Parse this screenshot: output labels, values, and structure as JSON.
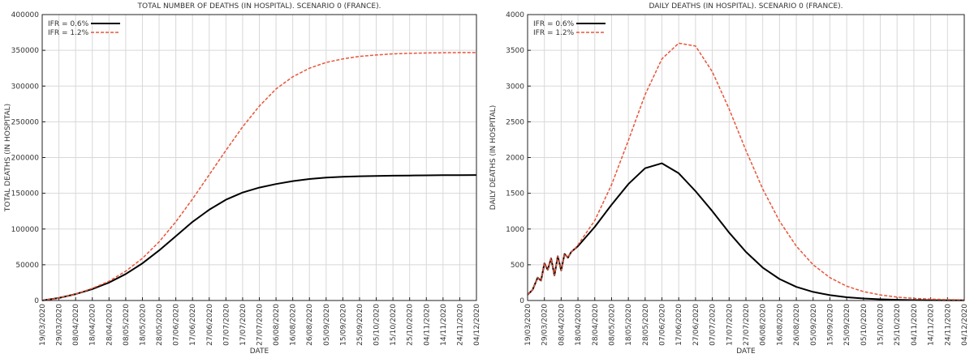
{
  "chart_data": [
    {
      "type": "line",
      "title": "TOTAL NUMBER OF DEATHS (IN HOSPITAL). SCENARIO 0 (FRANCE).",
      "xlabel": "DATE",
      "ylabel": "TOTAL DEATHS (IN HOSPITAL)",
      "x_tick_labels": [
        "19/03/2020",
        "29/03/2020",
        "08/04/2020",
        "18/04/2020",
        "28/04/2020",
        "08/05/2020",
        "18/05/2020",
        "28/05/2020",
        "07/06/2020",
        "17/06/2020",
        "27/06/2020",
        "07/07/2020",
        "17/07/2020",
        "27/07/2020",
        "06/08/2020",
        "16/08/2020",
        "26/08/2020",
        "05/09/2020",
        "15/09/2020",
        "25/09/2020",
        "05/10/2020",
        "15/10/2020",
        "25/10/2020",
        "04/11/2020",
        "14/11/2020",
        "24/11/2020",
        "04/12/2020"
      ],
      "ylim": [
        0,
        400000
      ],
      "y_ticks": [
        0,
        50000,
        100000,
        150000,
        200000,
        250000,
        300000,
        350000,
        400000
      ],
      "grid": true,
      "legend_position": "top-left",
      "series": [
        {
          "name": "IFR = 0.6%",
          "color": "#000000",
          "line_style": "solid",
          "x": [
            "19/03/2020",
            "29/03/2020",
            "08/04/2020",
            "18/04/2020",
            "28/04/2020",
            "08/05/2020",
            "18/05/2020",
            "28/05/2020",
            "07/06/2020",
            "17/06/2020",
            "27/06/2020",
            "07/07/2020",
            "17/07/2020",
            "27/07/2020",
            "06/08/2020",
            "16/08/2020",
            "26/08/2020",
            "05/09/2020",
            "15/09/2020",
            "25/09/2020",
            "05/10/2020",
            "15/10/2020",
            "25/10/2020",
            "04/11/2020",
            "14/11/2020",
            "24/11/2020",
            "04/12/2020"
          ],
          "y": [
            0,
            3500,
            9000,
            16000,
            25000,
            37000,
            52000,
            70000,
            90000,
            110000,
            127000,
            141000,
            151000,
            158000,
            163000,
            167000,
            170000,
            172000,
            173000,
            173800,
            174200,
            174600,
            174900,
            175100,
            175300,
            175400,
            175500
          ]
        },
        {
          "name": "IFR = 1.2%",
          "color": "#e8553a",
          "line_style": "dashed",
          "x": [
            "19/03/2020",
            "29/03/2020",
            "08/04/2020",
            "18/04/2020",
            "28/04/2020",
            "08/05/2020",
            "18/05/2020",
            "28/05/2020",
            "07/06/2020",
            "17/06/2020",
            "27/06/2020",
            "07/07/2020",
            "17/07/2020",
            "27/07/2020",
            "06/08/2020",
            "16/08/2020",
            "26/08/2020",
            "05/09/2020",
            "15/09/2020",
            "25/09/2020",
            "05/10/2020",
            "15/10/2020",
            "25/10/2020",
            "04/11/2020",
            "14/11/2020",
            "24/11/2020",
            "04/12/2020"
          ],
          "y": [
            0,
            3500,
            9000,
            17000,
            27000,
            41000,
            59000,
            82000,
            110000,
            142000,
            176000,
            210000,
            243000,
            272000,
            296000,
            313000,
            325000,
            333000,
            338000,
            341500,
            343500,
            345000,
            345800,
            346300,
            346600,
            346800,
            346900
          ]
        }
      ]
    },
    {
      "type": "line",
      "title": "DAILY DEATHS (IN HOSPITAL). SCENARIO 0 (FRANCE).",
      "xlabel": "DATE",
      "ylabel": "DAILY DEATHS (IN HOSPITAL)",
      "x_tick_labels": [
        "19/03/2020",
        "29/03/2020",
        "08/04/2020",
        "18/04/2020",
        "28/04/2020",
        "08/05/2020",
        "18/05/2020",
        "28/05/2020",
        "07/06/2020",
        "17/06/2020",
        "27/06/2020",
        "07/07/2020",
        "17/07/2020",
        "27/07/2020",
        "06/08/2020",
        "16/08/2020",
        "26/08/2020",
        "05/09/2020",
        "15/09/2020",
        "25/09/2020",
        "05/10/2020",
        "15/10/2020",
        "25/10/2020",
        "04/11/2020",
        "14/11/2020",
        "24/11/2020",
        "04/12/2020"
      ],
      "ylim": [
        0,
        4000
      ],
      "y_ticks": [
        0,
        500,
        1000,
        1500,
        2000,
        2500,
        3000,
        3500,
        4000
      ],
      "grid": true,
      "legend_position": "top-left",
      "series": [
        {
          "name": "IFR = 0.6%",
          "color": "#000000",
          "line_style": "solid",
          "x": [
            "19/03/2020",
            "22/03/2020",
            "25/03/2020",
            "27/03/2020",
            "29/03/2020",
            "31/03/2020",
            "02/04/2020",
            "04/04/2020",
            "06/04/2020",
            "08/04/2020",
            "10/04/2020",
            "12/04/2020",
            "14/04/2020",
            "16/04/2020",
            "18/04/2020",
            "28/04/2020",
            "08/05/2020",
            "18/05/2020",
            "28/05/2020",
            "07/06/2020",
            "17/06/2020",
            "27/06/2020",
            "07/07/2020",
            "17/07/2020",
            "27/07/2020",
            "06/08/2020",
            "16/08/2020",
            "26/08/2020",
            "05/09/2020",
            "15/09/2020",
            "25/09/2020",
            "05/10/2020",
            "15/10/2020",
            "25/10/2020",
            "04/11/2020",
            "14/11/2020",
            "24/11/2020",
            "04/12/2020"
          ],
          "y": [
            80,
            150,
            320,
            280,
            520,
            430,
            590,
            350,
            620,
            420,
            650,
            600,
            680,
            720,
            760,
            1030,
            1340,
            1630,
            1850,
            1920,
            1780,
            1530,
            1250,
            950,
            680,
            460,
            300,
            190,
            120,
            75,
            45,
            28,
            17,
            10,
            6,
            4,
            3,
            2
          ]
        },
        {
          "name": "IFR = 1.2%",
          "color": "#e8553a",
          "line_style": "dashed",
          "x": [
            "19/03/2020",
            "22/03/2020",
            "25/03/2020",
            "27/03/2020",
            "29/03/2020",
            "31/03/2020",
            "02/04/2020",
            "04/04/2020",
            "06/04/2020",
            "08/04/2020",
            "10/04/2020",
            "12/04/2020",
            "14/04/2020",
            "16/04/2020",
            "18/04/2020",
            "28/04/2020",
            "08/05/2020",
            "18/05/2020",
            "28/05/2020",
            "07/06/2020",
            "17/06/2020",
            "27/06/2020",
            "07/07/2020",
            "17/07/2020",
            "27/07/2020",
            "06/08/2020",
            "16/08/2020",
            "26/08/2020",
            "05/09/2020",
            "15/09/2020",
            "25/09/2020",
            "05/10/2020",
            "15/10/2020",
            "25/10/2020",
            "04/11/2020",
            "14/11/2020",
            "24/11/2020",
            "04/12/2020"
          ],
          "y": [
            80,
            150,
            320,
            280,
            520,
            430,
            590,
            350,
            620,
            420,
            650,
            600,
            680,
            720,
            780,
            1120,
            1620,
            2240,
            2880,
            3380,
            3600,
            3560,
            3200,
            2680,
            2100,
            1560,
            1110,
            760,
            500,
            320,
            200,
            125,
            78,
            48,
            30,
            19,
            12,
            8
          ]
        }
      ]
    }
  ]
}
